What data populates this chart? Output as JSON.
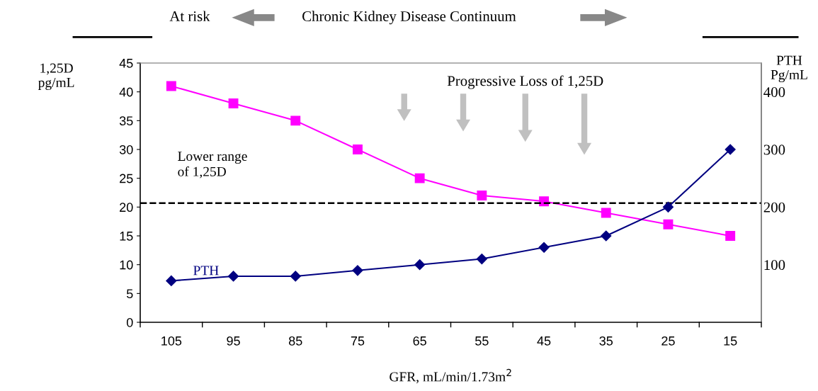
{
  "chart_data": {
    "type": "line",
    "title": "Chronic Kidney Disease Continuum",
    "xlabel": "GFR, mL/min/1.73m$^{2}$",
    "ylabel": "1,25D\npg/mL",
    "y2label": "PTH\nPg/mL",
    "categories": [
      "105",
      "95",
      "85",
      "75",
      "65",
      "55",
      "45",
      "35",
      "25",
      "15"
    ],
    "series": [
      {
        "color": "#ff00ff",
        "marker": "square",
        "values": [
          41,
          38,
          35,
          30,
          25,
          22,
          21,
          19,
          17,
          15
        ]
      },
      {
        "name": "PTH",
        "color": "#000080",
        "marker": "diamond",
        "axis": "y2",
        "values": [
          72,
          80,
          80,
          90,
          100,
          110,
          130,
          150,
          200,
          300
        ]
      }
    ],
    "ylim": [
      0,
      45
    ],
    "yticks": [
      0,
      5,
      10,
      15,
      20,
      25,
      30,
      35,
      40,
      45
    ],
    "y2lim": [
      0,
      450
    ],
    "y2ticks": [
      100,
      200,
      300,
      400
    ],
    "ref_lines": [
      {
        "axis": "y",
        "value": 20.7,
        "label": "Lower range\nof 1,25D",
        "color": "#000000",
        "line_style": "dashed"
      }
    ],
    "annotations": [
      "At risk",
      "Progressive Loss of 1,25D"
    ],
    "grid": false
  }
}
